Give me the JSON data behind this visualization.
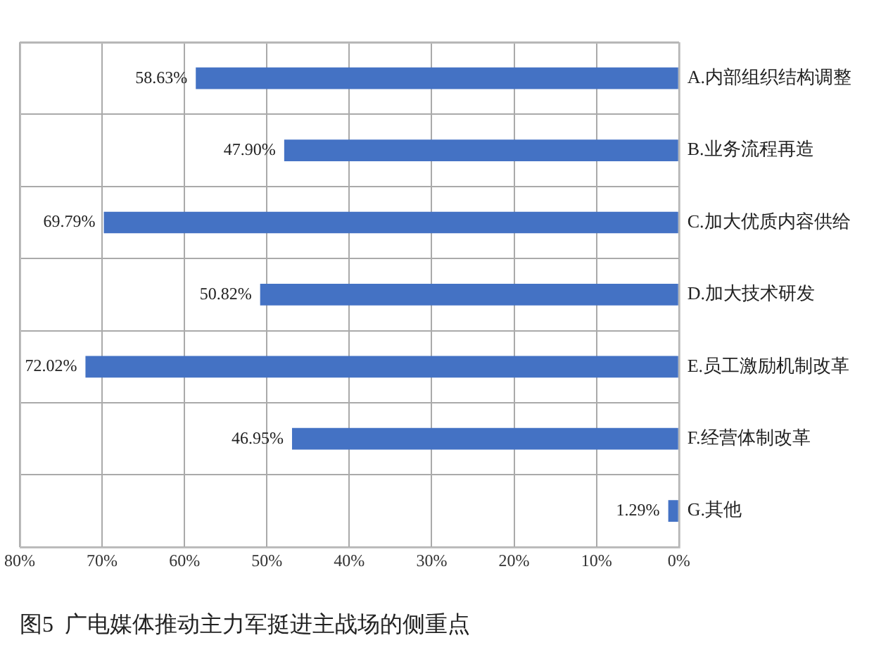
{
  "chart_data": {
    "type": "bar",
    "orientation": "horizontal",
    "title": "图5  广电媒体推动主力军挺进主战场的侧重点",
    "categories": [
      "A.内部组织结构调整",
      "B.业务流程再造",
      "C.加大优质内容供给",
      "D.加大技术研发",
      "E.员工激励机制改革",
      "F.经营体制改革",
      "G.其他"
    ],
    "values": [
      58.63,
      47.9,
      69.79,
      50.82,
      72.02,
      46.95,
      1.29
    ],
    "value_labels": [
      "58.63%",
      "47.90%",
      "69.79%",
      "50.82%",
      "72.02%",
      "46.95%",
      "1.29%"
    ],
    "color": "#4472c4",
    "xlim": [
      80,
      0
    ],
    "xticks": [
      {
        "value": 80,
        "label": "80%"
      },
      {
        "value": 70,
        "label": "70%"
      },
      {
        "value": 60,
        "label": "60%"
      },
      {
        "value": 50,
        "label": "50%"
      },
      {
        "value": 40,
        "label": "40%"
      },
      {
        "value": 30,
        "label": "30%"
      },
      {
        "value": 20,
        "label": "20%"
      },
      {
        "value": 10,
        "label": "10%"
      },
      {
        "value": 0,
        "label": "0%"
      }
    ],
    "grid": true,
    "legend": false
  }
}
